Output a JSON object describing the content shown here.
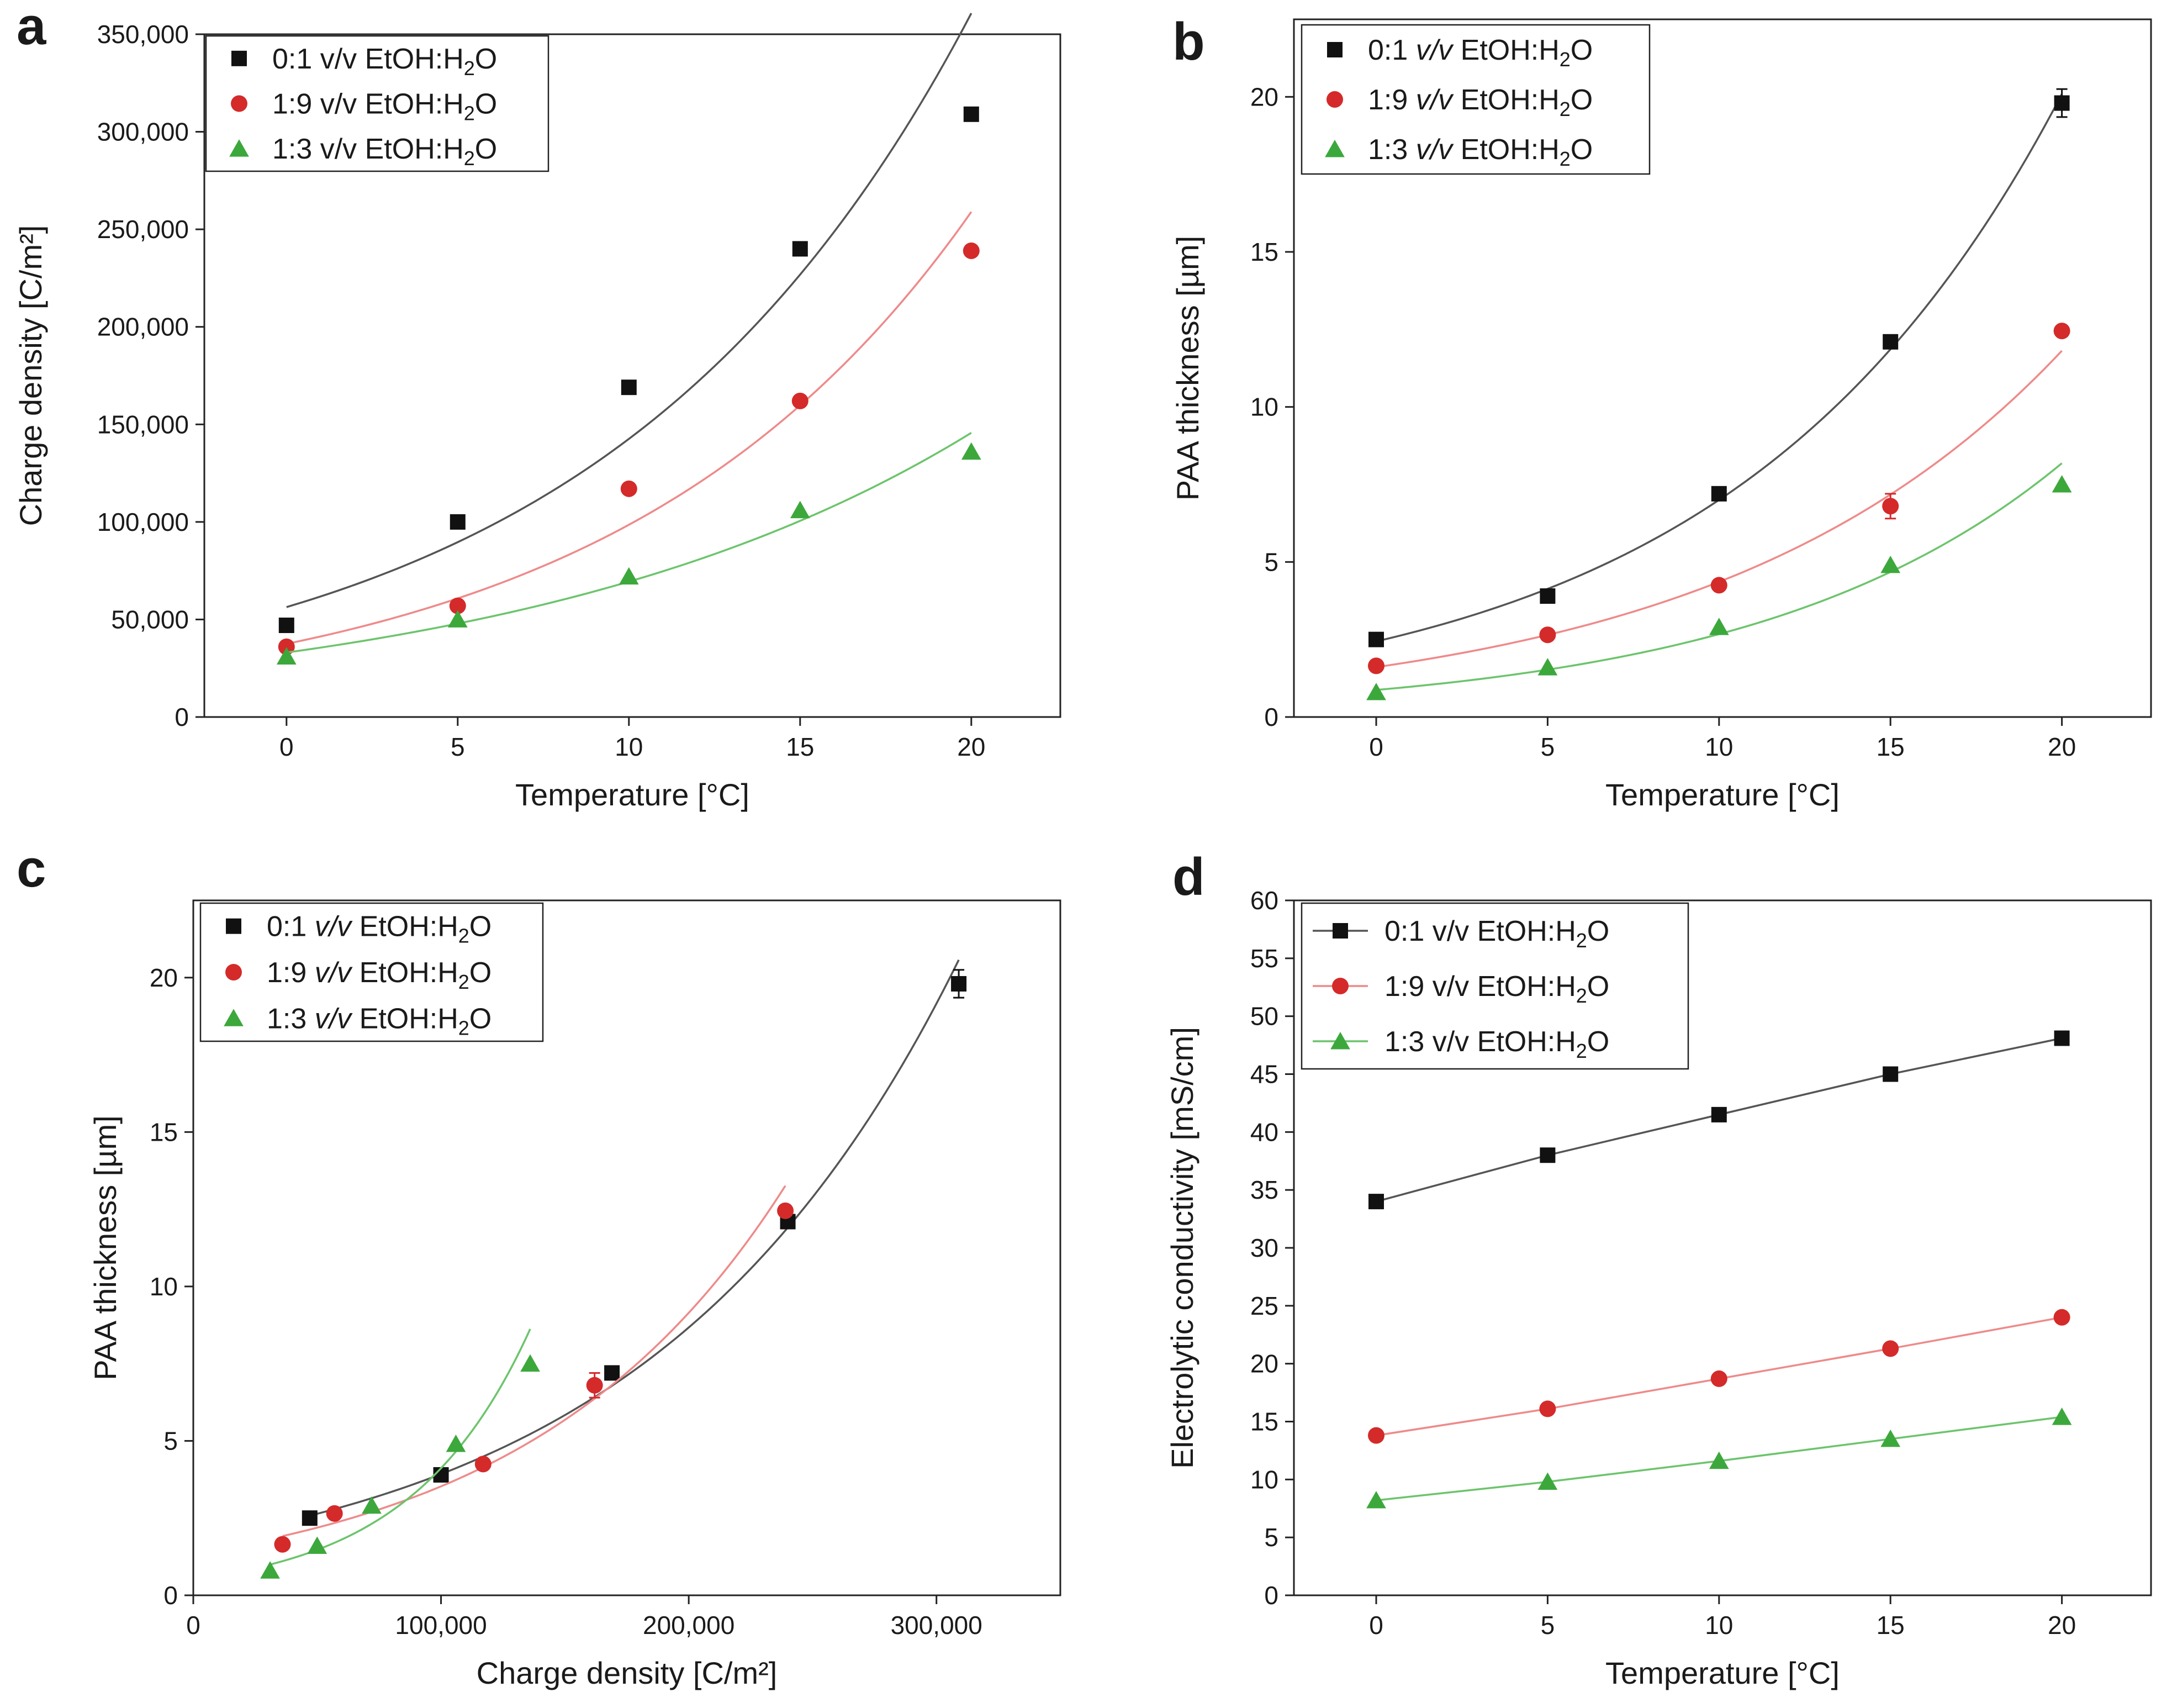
{
  "figure": {
    "panel_letters": [
      "a",
      "b",
      "c",
      "d"
    ]
  },
  "colors": {
    "black_series": "#111111",
    "red_series": "#d42a2a",
    "green_series": "#3ca83c",
    "black_fit": "#555555",
    "red_fit": "#ee8a8a",
    "green_fit": "#6cc46c",
    "axis": "#222222"
  },
  "chart_data": [
    {
      "id": "a",
      "type": "scatter",
      "title": "",
      "xlabel": "Temperature [°C]",
      "ylabel": "Charge density [C/m²]",
      "xlim": [
        -2.4,
        22.6
      ],
      "ylim": [
        0,
        350000
      ],
      "xticks": [
        0,
        5,
        10,
        15,
        20
      ],
      "xtick_labels": [
        "0",
        "5",
        "10",
        "15",
        "20"
      ],
      "yticks": [
        0,
        50000,
        100000,
        150000,
        200000,
        250000,
        300000,
        350000
      ],
      "ytick_labels": [
        "0",
        "50,000",
        "100,000",
        "150,000",
        "200,000",
        "250,000",
        "300,000",
        "350,000"
      ],
      "legend_position": "top-left",
      "fit": "exp",
      "series": [
        {
          "name": "0:1 v/v EtOH:H2O",
          "legend_prefix": "0:1 ",
          "legend_vv": "v/v",
          "legend_mid": " EtOH:H",
          "legend_sub": "2",
          "legend_end": "O",
          "color_key": "black_series",
          "fit_key": "black_fit",
          "marker": "square",
          "x": [
            0,
            5,
            10,
            15,
            20
          ],
          "y": [
            47000,
            100000,
            169000,
            240000,
            309000
          ],
          "err": []
        },
        {
          "name": "1:9 v/v EtOH:H2O",
          "legend_prefix": "1:9 ",
          "legend_vv": "v/v",
          "legend_mid": " EtOH:H",
          "legend_sub": "2",
          "legend_end": "O",
          "color_key": "red_series",
          "fit_key": "red_fit",
          "marker": "circle",
          "x": [
            0,
            5,
            10,
            15,
            20
          ],
          "y": [
            36000,
            57000,
            117000,
            162000,
            239000
          ],
          "err": []
        },
        {
          "name": "1:3 v/v EtOH:H2O",
          "legend_prefix": "1:3 ",
          "legend_vv": "v/v",
          "legend_mid": " EtOH:H",
          "legend_sub": "2",
          "legend_end": "O",
          "color_key": "green_series",
          "fit_key": "green_fit",
          "marker": "triangle",
          "x": [
            0,
            5,
            10,
            15,
            20
          ],
          "y": [
            31000,
            50000,
            72000,
            106000,
            136000
          ],
          "err": []
        }
      ]
    },
    {
      "id": "b",
      "type": "scatter",
      "title": "",
      "xlabel": "Temperature [°C]",
      "ylabel": "PAA thickness [µm]",
      "xlim": [
        -2.4,
        22.6
      ],
      "ylim": [
        0,
        22.5
      ],
      "xticks": [
        0,
        5,
        10,
        15,
        20
      ],
      "xtick_labels": [
        "0",
        "5",
        "10",
        "15",
        "20"
      ],
      "yticks": [
        0,
        5,
        10,
        15,
        20
      ],
      "ytick_labels": [
        "0",
        "5",
        "10",
        "15",
        "20"
      ],
      "legend_position": "top-left",
      "fit": "exp",
      "series": [
        {
          "name": "0:1 v/v EtOH:H2O",
          "legend_prefix": "0:1 ",
          "legend_vv": "v/v",
          "legend_mid": " EtOH:H",
          "legend_sub": "2",
          "legend_end": "O",
          "color_key": "black_series",
          "fit_key": "black_fit",
          "marker": "square",
          "x": [
            0,
            5,
            10,
            15,
            20
          ],
          "y": [
            2.5,
            3.9,
            7.2,
            12.1,
            19.8
          ],
          "err": [
            0,
            0,
            0,
            0,
            0.45
          ]
        },
        {
          "name": "1:9 v/v EtOH:H2O",
          "legend_prefix": "1:9 ",
          "legend_vv": "v/v",
          "legend_mid": " EtOH:H",
          "legend_sub": "2",
          "legend_end": "O",
          "color_key": "red_series",
          "fit_key": "red_fit",
          "marker": "circle",
          "x": [
            0,
            5,
            10,
            15,
            20
          ],
          "y": [
            1.65,
            2.65,
            4.25,
            6.8,
            12.45
          ],
          "err": [
            0,
            0,
            0,
            0.4,
            0
          ]
        },
        {
          "name": "1:3 v/v EtOH:H2O",
          "legend_prefix": "1:3 ",
          "legend_vv": "v/v",
          "legend_mid": " EtOH:H",
          "legend_sub": "2",
          "legend_end": "O",
          "color_key": "green_series",
          "fit_key": "green_fit",
          "marker": "triangle",
          "x": [
            0,
            5,
            10,
            15,
            20
          ],
          "y": [
            0.8,
            1.6,
            2.9,
            4.9,
            7.5
          ],
          "err": []
        }
      ]
    },
    {
      "id": "c",
      "type": "scatter",
      "title": "",
      "xlabel": "Charge density [C/m²]",
      "ylabel": "PAA thickness [µm]",
      "xlim": [
        0,
        350000
      ],
      "ylim": [
        0,
        22.5
      ],
      "xticks": [
        0,
        100000,
        200000,
        300000
      ],
      "xtick_labels": [
        "0",
        "100,000",
        "200,000",
        "300,000"
      ],
      "yticks": [
        0,
        5,
        10,
        15,
        20
      ],
      "ytick_labels": [
        "0",
        "5",
        "10",
        "15",
        "20"
      ],
      "legend_position": "top-left",
      "fit": "exp",
      "series": [
        {
          "name": "0:1 v/v EtOH:H2O",
          "legend_prefix": "0:1 ",
          "legend_vv": "v/v",
          "legend_mid": " EtOH:H",
          "legend_sub": "2",
          "legend_end": "O",
          "color_key": "black_series",
          "fit_key": "black_fit",
          "marker": "square",
          "x": [
            47000,
            100000,
            169000,
            240000,
            309000
          ],
          "y": [
            2.5,
            3.9,
            7.2,
            12.1,
            19.8
          ],
          "err": [
            0,
            0,
            0,
            0,
            0.45
          ]
        },
        {
          "name": "1:9 v/v EtOH:H2O",
          "legend_prefix": "1:9 ",
          "legend_vv": "v/v",
          "legend_mid": " EtOH:H",
          "legend_sub": "2",
          "legend_end": "O",
          "color_key": "red_series",
          "fit_key": "red_fit",
          "marker": "circle",
          "x": [
            36000,
            57000,
            117000,
            162000,
            239000
          ],
          "y": [
            1.65,
            2.65,
            4.25,
            6.8,
            12.45
          ],
          "err": [
            0,
            0,
            0,
            0.4,
            0
          ]
        },
        {
          "name": "1:3 v/v EtOH:H2O",
          "legend_prefix": "1:3 ",
          "legend_vv": "v/v",
          "legend_mid": " EtOH:H",
          "legend_sub": "2",
          "legend_end": "O",
          "color_key": "green_series",
          "fit_key": "green_fit",
          "marker": "triangle",
          "x": [
            31000,
            50000,
            72000,
            106000,
            136000
          ],
          "y": [
            0.8,
            1.6,
            2.9,
            4.9,
            7.5
          ],
          "err": []
        }
      ]
    },
    {
      "id": "d",
      "type": "line",
      "title": "",
      "xlabel": "Temperature [°C]",
      "ylabel": "Electrolytic conductivity [mS/cm]",
      "xlim": [
        -2.4,
        22.6
      ],
      "ylim": [
        0,
        60
      ],
      "xticks": [
        0,
        5,
        10,
        15,
        20
      ],
      "xtick_labels": [
        "0",
        "5",
        "10",
        "15",
        "20"
      ],
      "yticks": [
        0,
        5,
        10,
        15,
        20,
        25,
        30,
        35,
        40,
        45,
        50,
        55,
        60
      ],
      "ytick_labels": [
        "0",
        "5",
        "10",
        "15",
        "20",
        "25",
        "30",
        "35",
        "40",
        "45",
        "50",
        "55",
        "60"
      ],
      "legend_position": "top-left",
      "fit": "linear",
      "series": [
        {
          "name": "0:1 v/v EtOH:H2O",
          "legend_prefix": "0:1 ",
          "legend_vv": "v/v",
          "legend_mid": " EtOH:H",
          "legend_sub": "2",
          "legend_end": "O",
          "color_key": "black_series",
          "fit_key": "black_fit",
          "marker": "square",
          "x": [
            0,
            5,
            10,
            15,
            20
          ],
          "y": [
            34.0,
            38.0,
            41.5,
            45.0,
            48.1
          ],
          "err": []
        },
        {
          "name": "1:9 v/v EtOH:H2O",
          "legend_prefix": "1:9 ",
          "legend_vv": "v/v",
          "legend_mid": " EtOH:H",
          "legend_sub": "2",
          "legend_end": "O",
          "color_key": "red_series",
          "fit_key": "red_fit",
          "marker": "circle",
          "x": [
            0,
            5,
            10,
            15,
            20
          ],
          "y": [
            13.8,
            16.1,
            18.7,
            21.3,
            24.0
          ],
          "err": []
        },
        {
          "name": "1:3 v/v EtOH:H2O",
          "legend_prefix": "1:3 ",
          "legend_vv": "v/v",
          "legend_mid": " EtOH:H",
          "legend_sub": "2",
          "legend_end": "O",
          "color_key": "green_series",
          "fit_key": "green_fit",
          "marker": "triangle",
          "x": [
            0,
            5,
            10,
            15,
            20
          ],
          "y": [
            8.2,
            9.8,
            11.6,
            13.5,
            15.4
          ],
          "err": []
        }
      ]
    }
  ]
}
